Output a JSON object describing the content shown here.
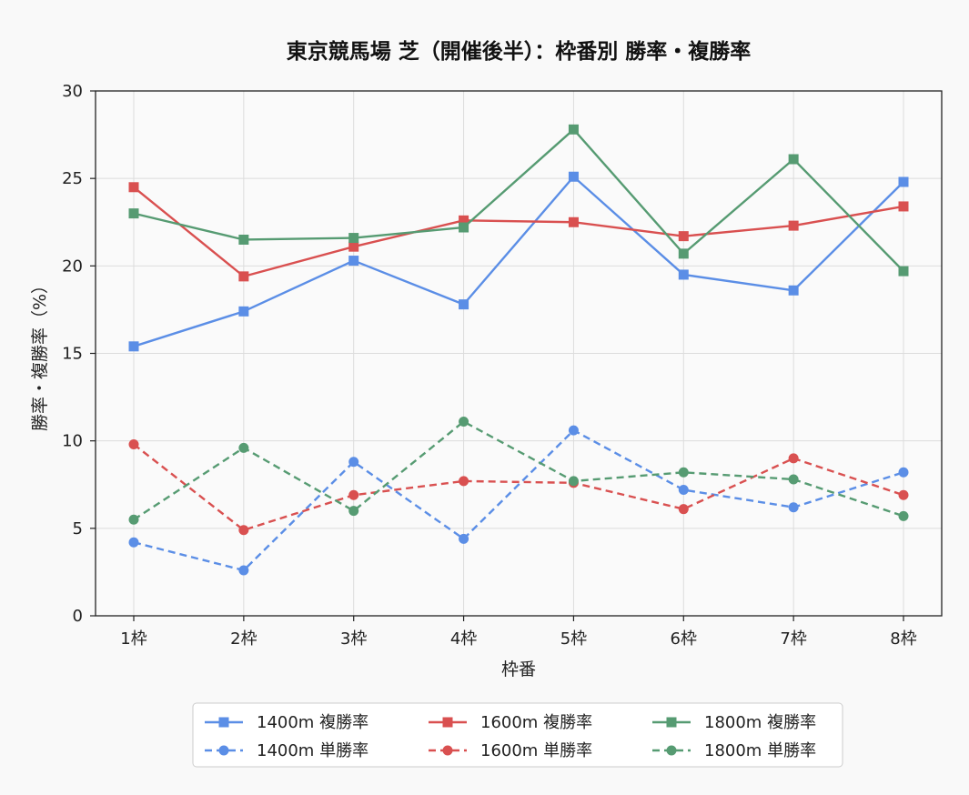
{
  "chart_data": {
    "type": "line",
    "title": "東京競馬場 芝（開催後半）：枠番別 勝率・複勝率",
    "xlabel": "枠番",
    "ylabel": "勝率・複勝率（%）",
    "categories": [
      "1枠",
      "2枠",
      "3枠",
      "4枠",
      "5枠",
      "6枠",
      "7枠",
      "8枠"
    ],
    "ylim": [
      0,
      30
    ],
    "yticks": [
      0,
      5,
      10,
      15,
      20,
      25,
      30
    ],
    "grid": true,
    "legend_position": "bottom-center",
    "series": [
      {
        "name": "1400m 複勝率",
        "color": "#5b8ee6",
        "style": "solid",
        "marker": "square",
        "values": [
          15.4,
          17.4,
          20.3,
          17.8,
          25.1,
          19.5,
          18.6,
          24.8
        ]
      },
      {
        "name": "1400m 単勝率",
        "color": "#5b8ee6",
        "style": "dashed",
        "marker": "circle",
        "values": [
          4.2,
          2.6,
          8.8,
          4.4,
          10.6,
          7.2,
          6.2,
          8.2
        ]
      },
      {
        "name": "1600m 複勝率",
        "color": "#d95050",
        "style": "solid",
        "marker": "square",
        "values": [
          24.5,
          19.4,
          21.1,
          22.6,
          22.5,
          21.7,
          22.3,
          23.4
        ]
      },
      {
        "name": "1600m 単勝率",
        "color": "#d95050",
        "style": "dashed",
        "marker": "circle",
        "values": [
          9.8,
          4.9,
          6.9,
          7.7,
          7.6,
          6.1,
          9.0,
          6.9
        ]
      },
      {
        "name": "1800m 複勝率",
        "color": "#569b72",
        "style": "solid",
        "marker": "square",
        "values": [
          23.0,
          21.5,
          21.6,
          22.2,
          27.8,
          20.7,
          26.1,
          19.7
        ]
      },
      {
        "name": "1800m 単勝率",
        "color": "#569b72",
        "style": "dashed",
        "marker": "circle",
        "values": [
          5.5,
          9.6,
          6.0,
          11.1,
          7.7,
          8.2,
          7.8,
          5.7
        ]
      }
    ]
  }
}
